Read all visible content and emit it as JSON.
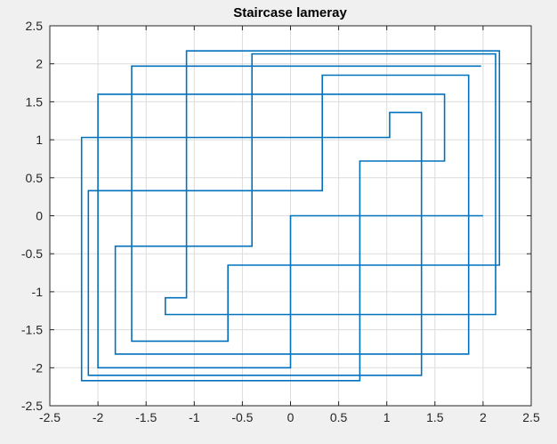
{
  "colors": {
    "figure_background": "#f0f0f0",
    "axes_background": "#ffffff",
    "axes_border": "#262626",
    "grid": "#dcdcdc",
    "series": "#0072bd"
  },
  "chart_data": {
    "type": "line",
    "title": "Staircase lameray",
    "xlabel": "",
    "ylabel": "",
    "xlim": [
      -2.5,
      2.5
    ],
    "ylim": [
      -2.5,
      2.5
    ],
    "xticks": [
      "-2.5",
      "-2",
      "-1.5",
      "-1",
      "-0.5",
      "0",
      "0.5",
      "1",
      "1.5",
      "2",
      "2.5"
    ],
    "yticks": [
      "2.5",
      "2",
      "1.5",
      "1",
      "0.5",
      "0",
      "-0.5",
      "-1",
      "-1.5",
      "-2",
      "-2.5"
    ],
    "grid": true,
    "legend": "none",
    "series": [
      {
        "x": [
          2.0,
          0.0,
          0.0,
          -2.0,
          -2.0,
          1.6,
          1.6,
          0.72,
          0.72,
          -2.17,
          -2.17,
          1.03,
          1.03,
          1.36,
          1.36,
          -2.1,
          -2.1,
          0.33,
          0.33,
          1.85,
          1.85,
          -1.82,
          -1.82,
          -0.4,
          -0.4,
          2.13,
          2.13,
          -1.3,
          -1.3,
          -1.08,
          -1.08,
          2.17,
          2.17,
          -0.65,
          -0.65,
          -1.65,
          -1.65,
          1.98
        ],
        "y": [
          0.0,
          0.0,
          -2.0,
          -2.0,
          1.6,
          1.6,
          0.72,
          0.72,
          -2.17,
          -2.17,
          1.03,
          1.03,
          1.36,
          1.36,
          -2.1,
          -2.1,
          0.33,
          0.33,
          1.85,
          1.85,
          -1.82,
          -1.82,
          -0.4,
          -0.4,
          2.13,
          2.13,
          -1.3,
          -1.3,
          -1.08,
          -1.08,
          2.17,
          2.17,
          -0.65,
          -0.65,
          -1.65,
          -1.65,
          1.97,
          1.97
        ]
      }
    ]
  }
}
